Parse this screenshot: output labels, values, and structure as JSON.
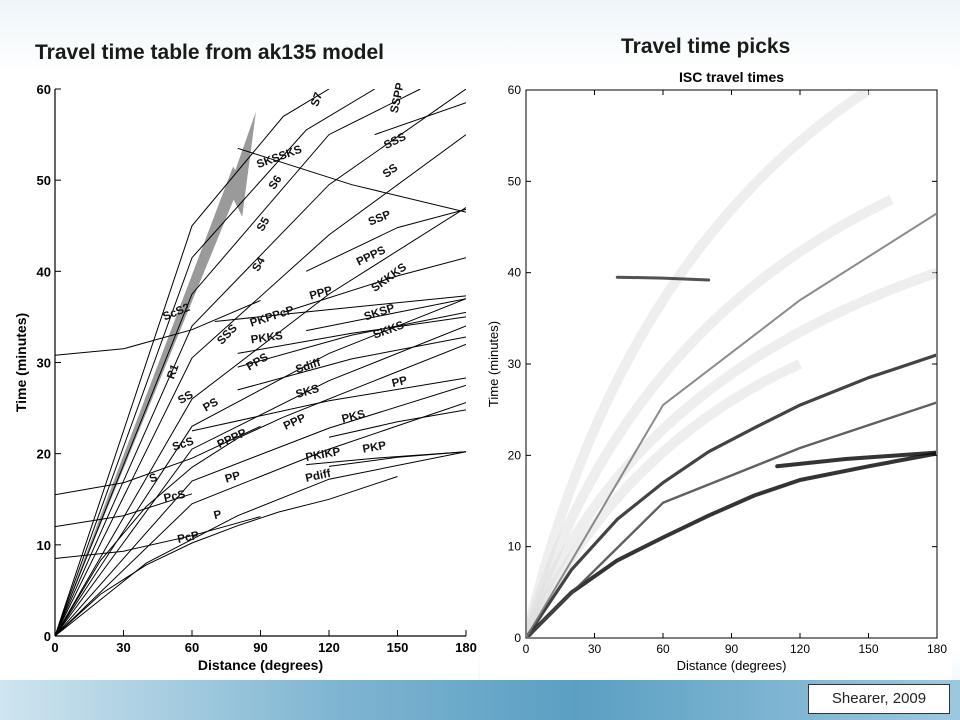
{
  "slide": {
    "title_left": "Travel time table from ak135 model",
    "title_right": "Travel time picks",
    "credit": "Shearer, 2009"
  },
  "chart_data": [
    {
      "type": "line",
      "title": "",
      "xlabel": "Distance (degrees)",
      "ylabel": "Time (minutes)",
      "xlim": [
        0,
        180
      ],
      "ylim": [
        0,
        60
      ],
      "xticks": [
        0,
        30,
        60,
        90,
        120,
        150,
        180
      ],
      "yticks": [
        0,
        10,
        20,
        30,
        40,
        50,
        60
      ],
      "grid": false,
      "series": [
        {
          "name": "P",
          "x": [
            0,
            20,
            40,
            60,
            80,
            98
          ],
          "y": [
            0,
            4.6,
            7.8,
            10.2,
            12.1,
            13.6
          ]
        },
        {
          "name": "Pdiff",
          "x": [
            98,
            120,
            150
          ],
          "y": [
            13.6,
            15,
            17.5
          ]
        },
        {
          "name": "PcP",
          "x": [
            0,
            30,
            60,
            90
          ],
          "y": [
            8.5,
            9.3,
            11,
            13.1
          ]
        },
        {
          "name": "PP",
          "x": [
            0,
            40,
            80,
            120,
            180
          ],
          "y": [
            0,
            8,
            13.2,
            17.2,
            20.2
          ]
        },
        {
          "name": "PKP",
          "x": [
            120,
            150,
            180
          ],
          "y": [
            18.6,
            19.6,
            20.2
          ]
        },
        {
          "name": "PKIKP",
          "x": [
            110,
            140,
            180
          ],
          "y": [
            18.8,
            19.5,
            20.2
          ]
        },
        {
          "name": "PPP",
          "x": [
            0,
            60,
            120,
            180
          ],
          "y": [
            0,
            14.5,
            20.5,
            25.6
          ]
        },
        {
          "name": "PPPP",
          "x": [
            0,
            60,
            120,
            180
          ],
          "y": [
            0,
            17,
            22.8,
            27.5
          ]
        },
        {
          "name": "S",
          "x": [
            0,
            20,
            40,
            60,
            80,
            100
          ],
          "y": [
            0,
            8.3,
            14.2,
            18.5,
            21.7,
            24
          ]
        },
        {
          "name": "Sdiff",
          "x": [
            100,
            140,
            180
          ],
          "y": [
            24,
            28,
            32
          ]
        },
        {
          "name": "ScS",
          "x": [
            0,
            30,
            60,
            90
          ],
          "y": [
            15.5,
            16.8,
            19.5,
            23
          ]
        },
        {
          "name": "PcS",
          "x": [
            0,
            30,
            60
          ],
          "y": [
            12,
            13.2,
            15.6
          ]
        },
        {
          "name": "PS",
          "x": [
            0,
            60,
            120,
            180
          ],
          "y": [
            0,
            20.5,
            28,
            34
          ]
        },
        {
          "name": "PPS",
          "x": [
            0,
            60,
            120,
            180
          ],
          "y": [
            0,
            23,
            31,
            37
          ]
        },
        {
          "name": "SS",
          "x": [
            0,
            60,
            120,
            180
          ],
          "y": [
            0,
            26,
            37.5,
            47
          ]
        },
        {
          "name": "SSS",
          "x": [
            0,
            60,
            120,
            180
          ],
          "y": [
            0,
            30.5,
            44,
            55
          ]
        },
        {
          "name": "SKS",
          "x": [
            60,
            120,
            180
          ],
          "y": [
            22.5,
            25.8,
            28.3
          ]
        },
        {
          "name": "SKKS",
          "x": [
            80,
            130,
            180
          ],
          "y": [
            27,
            30.4,
            32.8
          ]
        },
        {
          "name": "SKKKS",
          "x": [
            110,
            150,
            180
          ],
          "y": [
            33.5,
            35.5,
            37
          ]
        },
        {
          "name": "SKSP",
          "x": [
            80,
            130,
            180
          ],
          "y": [
            29.5,
            33,
            35.5
          ]
        },
        {
          "name": "PKS",
          "x": [
            120,
            150,
            180
          ],
          "y": [
            21.8,
            23.5,
            24.8
          ]
        },
        {
          "name": "PKKS",
          "x": [
            80,
            130,
            180
          ],
          "y": [
            31,
            33.2,
            35
          ]
        },
        {
          "name": "PKPPcP",
          "x": [
            70,
            120,
            180
          ],
          "y": [
            34.5,
            35.8,
            37.3
          ]
        },
        {
          "name": "PPPS",
          "x": [
            100,
            150,
            180
          ],
          "y": [
            35.5,
            39.5,
            41.5
          ]
        },
        {
          "name": "SSP",
          "x": [
            110,
            150,
            180
          ],
          "y": [
            40,
            44.8,
            46.8
          ]
        },
        {
          "name": "SSPP",
          "x": [
            140,
            180
          ],
          "y": [
            55,
            58.5
          ]
        },
        {
          "name": "SKSSKS",
          "x": [
            80,
            130,
            180
          ],
          "y": [
            53.5,
            49.5,
            46.5
          ]
        },
        {
          "name": "ScS2",
          "x": [
            0,
            30,
            60,
            90
          ],
          "y": [
            30.8,
            31.5,
            33.6,
            36.8
          ]
        },
        {
          "name": "S4",
          "x": [
            0,
            60,
            120,
            180
          ],
          "y": [
            0,
            34,
            49.5,
            60
          ]
        },
        {
          "name": "S5",
          "x": [
            0,
            60,
            120,
            160
          ],
          "y": [
            0,
            37.5,
            55,
            60
          ]
        },
        {
          "name": "S6",
          "x": [
            0,
            60,
            110,
            140
          ],
          "y": [
            0,
            41.5,
            55.5,
            60
          ]
        },
        {
          "name": "S7",
          "x": [
            0,
            60,
            100,
            120
          ],
          "y": [
            0,
            45,
            57,
            60
          ]
        }
      ],
      "annotations": [
        {
          "text": "R1",
          "note": "gray arrow along Rayleigh wave slope"
        }
      ],
      "curve_labels": [
        "P",
        "PcP",
        "PP",
        "Pdiff",
        "PcS",
        "PPPP",
        "PPP",
        "PKIKP",
        "PKP",
        "S",
        "ScS",
        "PS",
        "PKS",
        "SS",
        "PPS",
        "Sdiff",
        "SKS",
        "PP",
        "R1",
        "SSS",
        "PKKS",
        "PKPPcP",
        "SKKS",
        "ScS2",
        "PPP",
        "SKSP",
        "SKKKS",
        "PPPS",
        "S4",
        "S5",
        "S6",
        "SSP",
        "SS",
        "SSS",
        "S7",
        "SSPP",
        "SKSSKS"
      ]
    },
    {
      "type": "scatter",
      "title": "ISC travel times",
      "xlabel": "Distance (degrees)",
      "ylabel": "Time (minutes)",
      "xlim": [
        0,
        180
      ],
      "ylim": [
        0,
        60
      ],
      "xticks": [
        0,
        30,
        60,
        90,
        120,
        150,
        180
      ],
      "yticks": [
        0,
        10,
        20,
        30,
        40,
        50,
        60
      ],
      "grid": false,
      "series": [
        {
          "name": "",
          "x": [
            0,
            20,
            40,
            60,
            80,
            100,
            120,
            150,
            180
          ],
          "y": [
            0,
            5,
            8.5,
            11,
            13.4,
            15.6,
            17.3,
            18.8,
            20.2
          ]
        },
        {
          "name": "",
          "x": [
            0,
            20,
            40,
            60,
            80,
            100,
            120,
            150,
            180
          ],
          "y": [
            0,
            7.5,
            13,
            17,
            20.4,
            23,
            25.5,
            28.5,
            31
          ]
        },
        {
          "name": "",
          "x": [
            110,
            140,
            180
          ],
          "y": [
            18.8,
            19.6,
            20.3
          ]
        },
        {
          "name": "",
          "x": [
            0,
            60,
            120,
            180
          ],
          "y": [
            0,
            14.8,
            20.8,
            25.8
          ]
        },
        {
          "name": "",
          "x": [
            0,
            60,
            120,
            180
          ],
          "y": [
            0,
            25.5,
            37,
            46.5
          ]
        },
        {
          "name": "",
          "x": [
            40,
            60,
            80
          ],
          "y": [
            39.5,
            39.4,
            39.2
          ]
        }
      ]
    }
  ]
}
